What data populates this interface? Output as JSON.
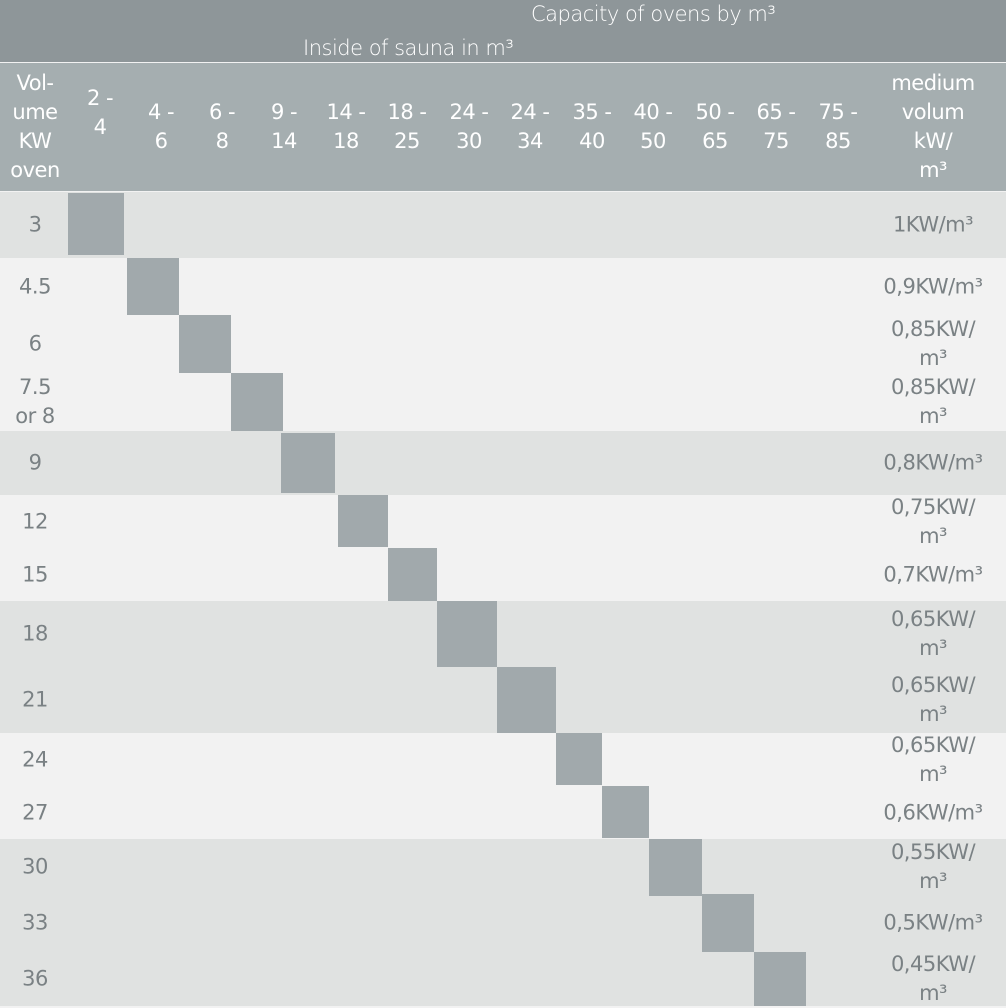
{
  "header": {
    "title": "Capacity of ovens by m³",
    "subtitle": "Inside of sauna in m³",
    "first_column": "Vol-\nume\nKW\noven",
    "ranges": [
      "2 -\n4",
      "4 -\n6",
      "6 -\n8",
      "9 -\n14",
      "14 -\n18",
      "18 -\n25",
      "24 -\n30",
      "24 -\n34",
      "35 -\n40",
      "40 -\n50",
      "50 -\n65",
      "65 -\n75",
      "75 -\n85"
    ],
    "last_column": "medium\nvolum kW/\nm³"
  },
  "rows": [
    {
      "kw": "3",
      "medium": "1KW/m³",
      "band": true
    },
    {
      "kw": "4.5",
      "medium": "0,9KW/m³",
      "band": false
    },
    {
      "kw": "6",
      "medium": "0,85KW/\nm³",
      "band": false
    },
    {
      "kw": "7.5\nor 8",
      "medium": "0,85KW/\nm³",
      "band": false
    },
    {
      "kw": "9",
      "medium": "0,8KW/m³",
      "band": true
    },
    {
      "kw": "12",
      "medium": "0,75KW/\nm³",
      "band": false
    },
    {
      "kw": "15",
      "medium": "0,7KW/m³",
      "band": false
    },
    {
      "kw": "18",
      "medium": "0,65KW/\nm³",
      "band": true
    },
    {
      "kw": "21",
      "medium": "0,65KW/\nm³",
      "band": true
    },
    {
      "kw": "24",
      "medium": "0,65KW/\nm³",
      "band": false
    },
    {
      "kw": "27",
      "medium": "0,6KW/m³",
      "band": false
    },
    {
      "kw": "30",
      "medium": "0,55KW/\nm³",
      "band": true
    },
    {
      "kw": "33",
      "medium": "0,5KW/m³",
      "band": true
    },
    {
      "kw": "36",
      "medium": "0,45KW/\nm³",
      "band": true
    }
  ],
  "colors": {
    "top_header": "#8e9699",
    "column_header": "#a5aeb0",
    "band": "#e0e2e1",
    "plain": "#f2f2f2",
    "marker": "#a1a9ac",
    "text": "#7a8184"
  }
}
